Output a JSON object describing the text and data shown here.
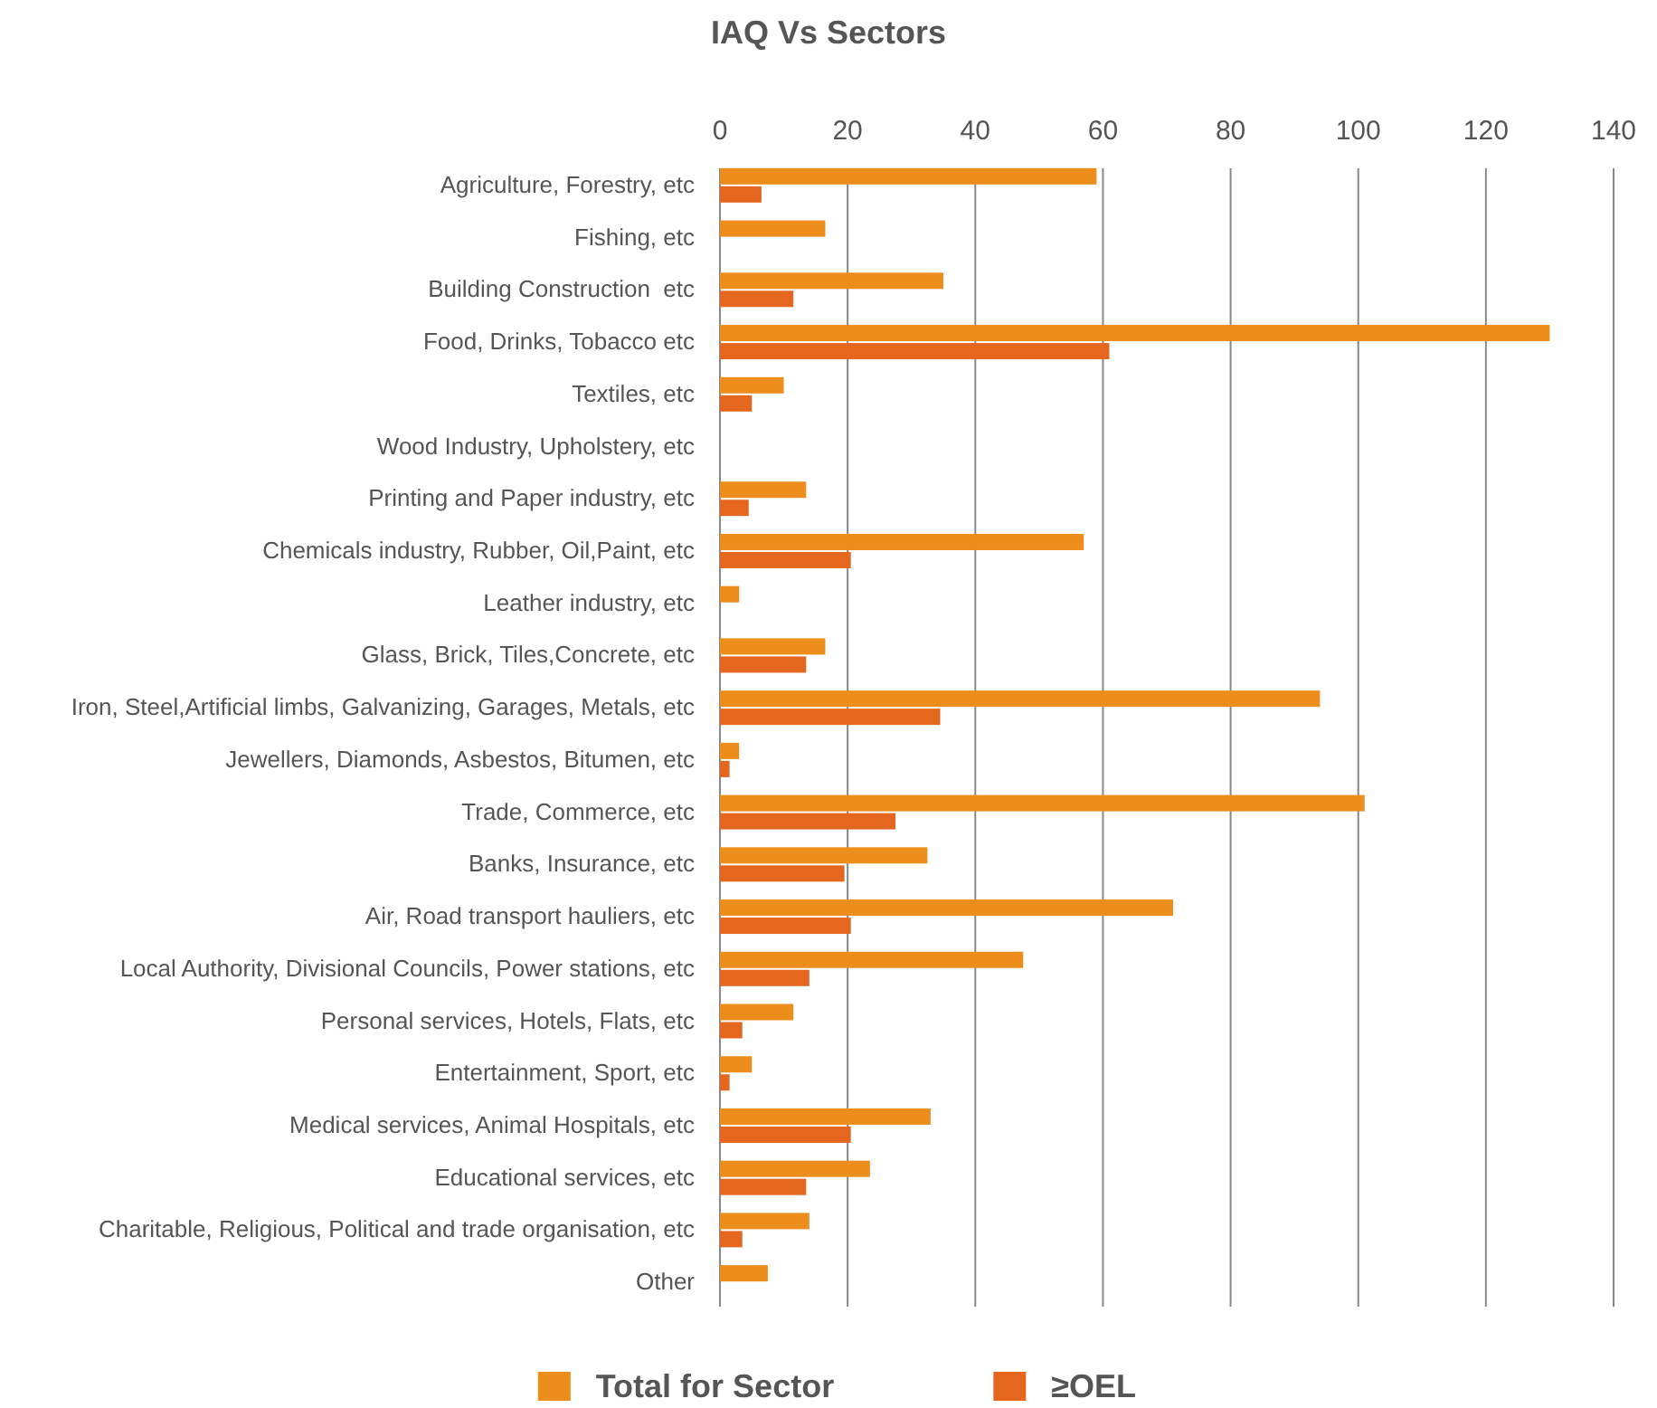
{
  "chart_data": {
    "type": "bar",
    "title": "IAQ Vs Sectors",
    "orientation": "horizontal",
    "categories": [
      "Agriculture, Forestry, etc",
      "Fishing, etc",
      "Building Construction  etc",
      "Food, Drinks, Tobacco etc",
      "Textiles, etc",
      "Wood Industry, Upholstery, etc",
      "Printing and Paper industry, etc",
      "Chemicals industry, Rubber, Oil,Paint, etc",
      "Leather industry, etc",
      "Glass, Brick, Tiles,Concrete, etc",
      "Iron, Steel,Artificial limbs, Galvanizing, Garages, Metals, etc",
      "Jewellers, Diamonds, Asbestos, Bitumen, etc",
      "Trade, Commerce, etc",
      "Banks, Insurance, etc",
      "Air, Road transport hauliers, etc",
      "Local Authority, Divisional Councils, Power stations, etc",
      "Personal services, Hotels, Flats, etc",
      "Entertainment, Sport, etc",
      "Medical services, Animal Hospitals, etc",
      "Educational services, etc",
      "Charitable, Religious, Political and trade organisation, etc",
      "Other"
    ],
    "series": [
      {
        "name": "Total for Sector",
        "color": "#ec8d1c",
        "values": [
          59,
          16.5,
          35,
          130,
          10,
          null,
          13.5,
          57,
          3,
          16.5,
          94,
          3,
          101,
          32.5,
          71,
          47.5,
          11.5,
          5,
          33,
          23.5,
          14,
          7.5
        ]
      },
      {
        "name": "≥OEL",
        "color": "#e5661f",
        "values": [
          6.5,
          null,
          11.5,
          61,
          5,
          null,
          4.5,
          20.5,
          null,
          13.5,
          34.5,
          1.5,
          27.5,
          19.5,
          20.5,
          14,
          3.5,
          1.5,
          20.5,
          13.5,
          3.5,
          null
        ]
      }
    ],
    "xlim": [
      0,
      140
    ],
    "xticks": [
      0,
      20,
      40,
      60,
      80,
      100,
      120,
      140
    ],
    "grid": "x",
    "legend": "bottom"
  }
}
